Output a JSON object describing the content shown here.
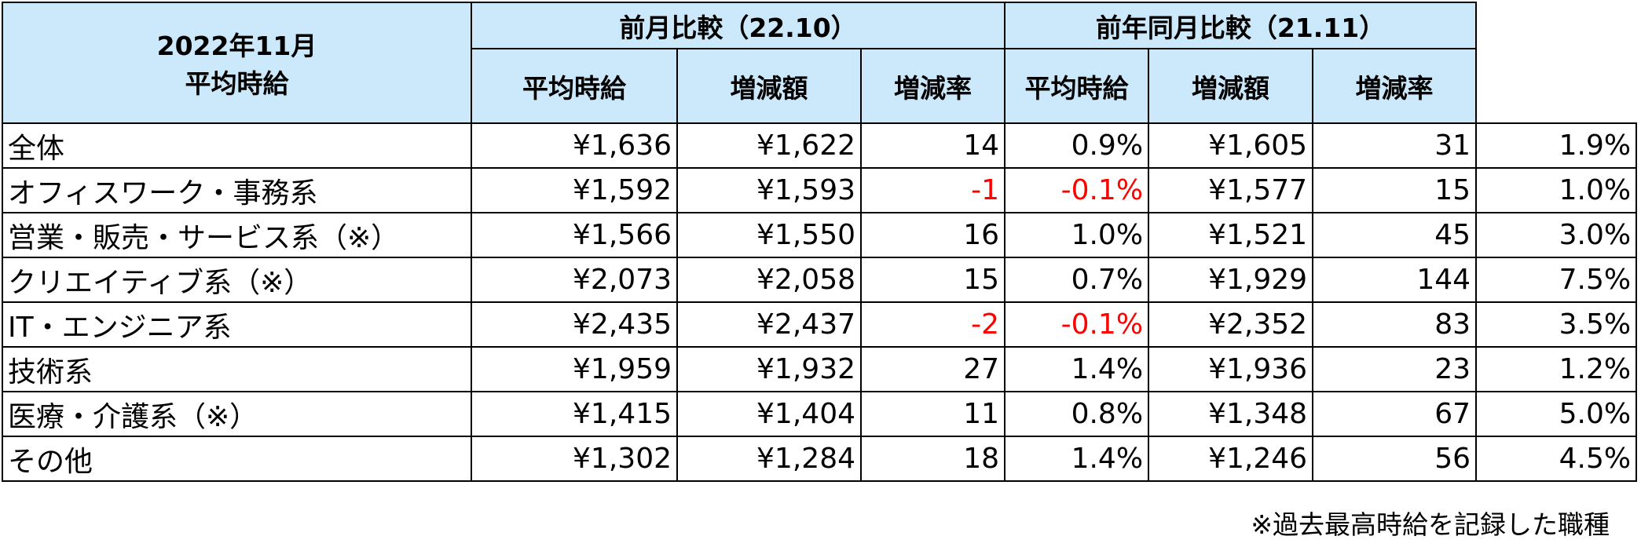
{
  "table": {
    "header": {
      "current": [
        "2022年11月",
        "平均時給"
      ],
      "groups": [
        {
          "title": "前月比較（22.10）",
          "columns": [
            "平均時給",
            "増減額",
            "増減率"
          ]
        },
        {
          "title": "前年同月比較（21.11）",
          "columns": [
            "平均時給",
            "増減額",
            "増減率"
          ]
        }
      ]
    },
    "rows": [
      [
        "全体",
        "¥1,636",
        "¥1,622",
        "14",
        "0.9%",
        "¥1,605",
        "31",
        "1.9%"
      ],
      [
        "オフィスワーク・事務系",
        "¥1,592",
        "¥1,593",
        "-1",
        "-0.1%",
        "¥1,577",
        "15",
        "1.0%"
      ],
      [
        "営業・販売・サービス系（※）",
        "¥1,566",
        "¥1,550",
        "16",
        "1.0%",
        "¥1,521",
        "45",
        "3.0%"
      ],
      [
        "クリエイティブ系（※）",
        "¥2,073",
        "¥2,058",
        "15",
        "0.7%",
        "¥1,929",
        "144",
        "7.5%"
      ],
      [
        "IT・エンジニア系",
        "¥2,435",
        "¥2,437",
        "-2",
        "-0.1%",
        "¥2,352",
        "83",
        "3.5%"
      ],
      [
        "技術系",
        "¥1,959",
        "¥1,932",
        "27",
        "1.4%",
        "¥1,936",
        "23",
        "1.2%"
      ],
      [
        "医療・介護系（※）",
        "¥1,415",
        "¥1,404",
        "11",
        "0.8%",
        "¥1,348",
        "67",
        "5.0%"
      ],
      [
        "その他",
        "¥1,302",
        "¥1,284",
        "18",
        "1.4%",
        "¥1,246",
        "56",
        "4.5%"
      ]
    ],
    "negative_color": "#ff0000"
  },
  "footnote": "※過去最高時給を記録した職種"
}
